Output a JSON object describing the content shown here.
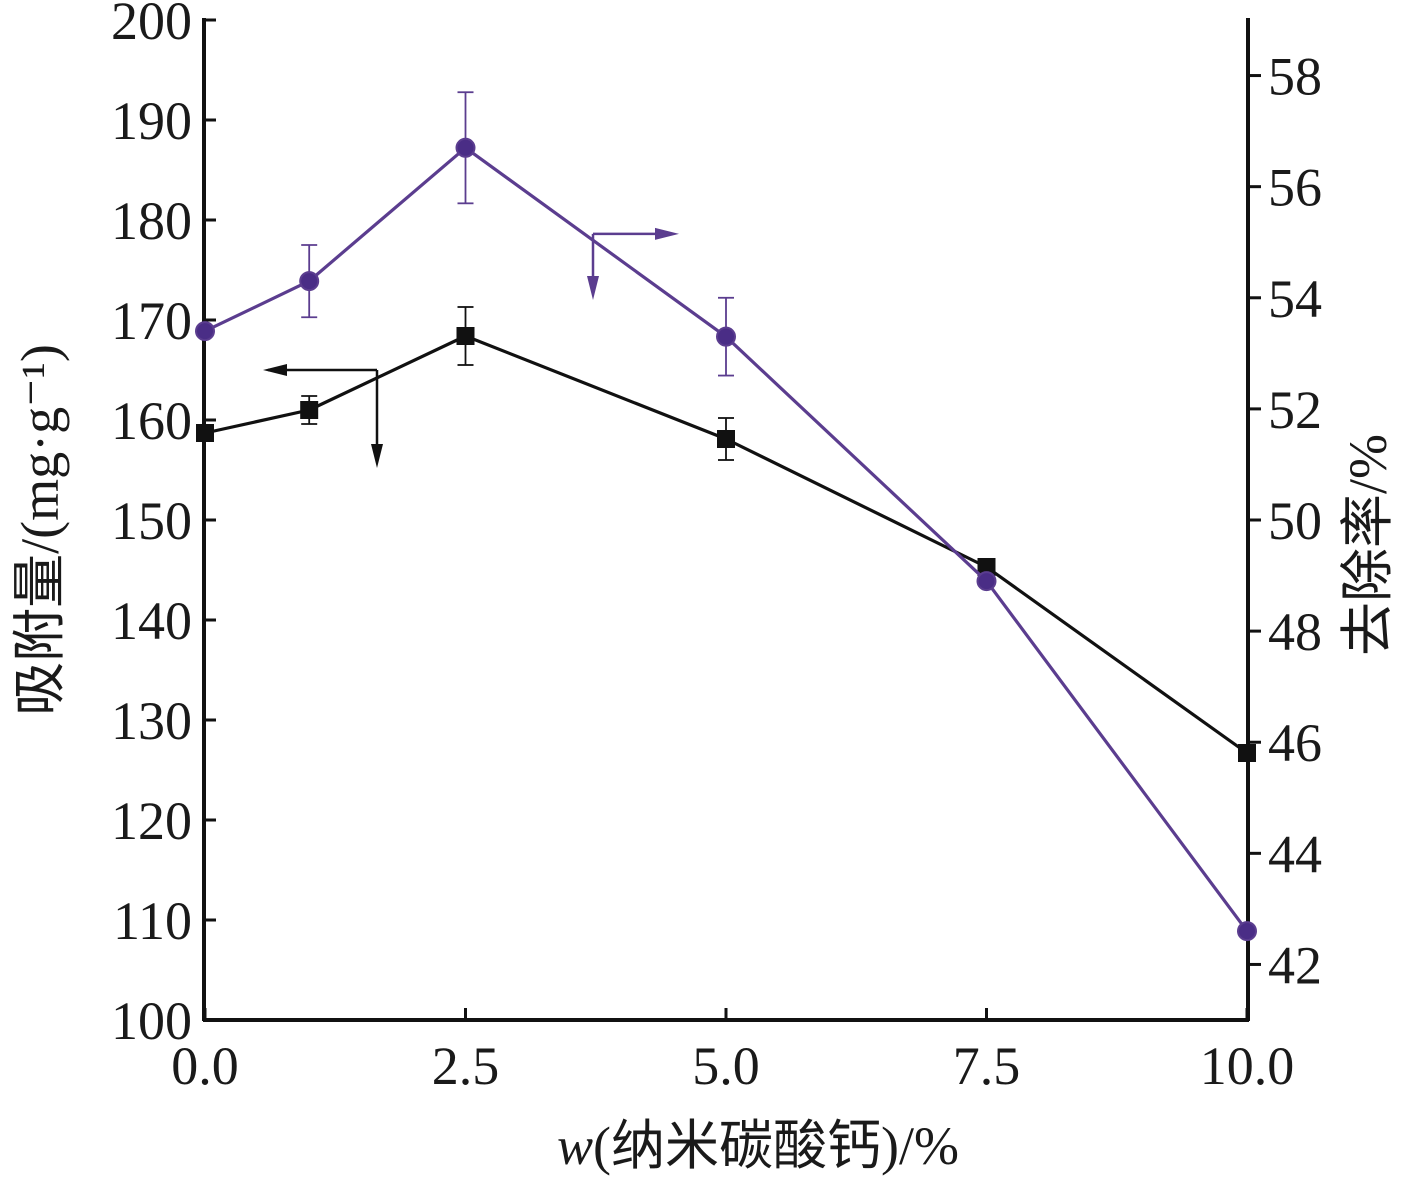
{
  "chart_data": {
    "type": "line",
    "x": [
      0.0,
      1.0,
      2.5,
      5.0,
      7.5,
      10.0
    ],
    "xlim": [
      0.0,
      10.0
    ],
    "x_ticks": [
      0.0,
      2.5,
      5.0,
      7.5,
      10.0
    ],
    "x_tick_labels": [
      "0.0",
      "2.5",
      "5.0",
      "7.5",
      "10.0"
    ],
    "xlabel_italic": "w",
    "xlabel_rest": "(纳米碳酸钙)/%",
    "ylabel_left": "吸附量/(mg·g⁻¹)",
    "ylabel_right": "去除率/%",
    "ylim_left": [
      100,
      200
    ],
    "y_ticks_left": [
      100,
      110,
      120,
      130,
      140,
      150,
      160,
      170,
      180,
      190,
      200
    ],
    "y_tick_labels_left": [
      "100",
      "110",
      "120",
      "130",
      "140",
      "150",
      "160",
      "170",
      "180",
      "190",
      "200"
    ],
    "ylim_right": [
      41,
      59
    ],
    "y_ticks_right": [
      42,
      44,
      46,
      48,
      50,
      52,
      54,
      56,
      58
    ],
    "y_tick_labels_right": [
      "42",
      "44",
      "46",
      "48",
      "50",
      "52",
      "54",
      "56",
      "58"
    ],
    "grid": false,
    "series": [
      {
        "axis": "left",
        "marker": "square",
        "color": "#111111",
        "values": [
          158.7,
          161.0,
          168.4,
          158.1,
          145.3,
          126.7
        ],
        "error": [
          0,
          1.4,
          2.9,
          2.1,
          0,
          0
        ]
      },
      {
        "axis": "right",
        "marker": "circle",
        "color": "#5b3d8f",
        "values": [
          53.4,
          54.3,
          56.7,
          53.3,
          48.9,
          42.6
        ],
        "error": [
          0,
          0.65,
          1.0,
          0.7,
          0,
          0
        ]
      }
    ]
  }
}
